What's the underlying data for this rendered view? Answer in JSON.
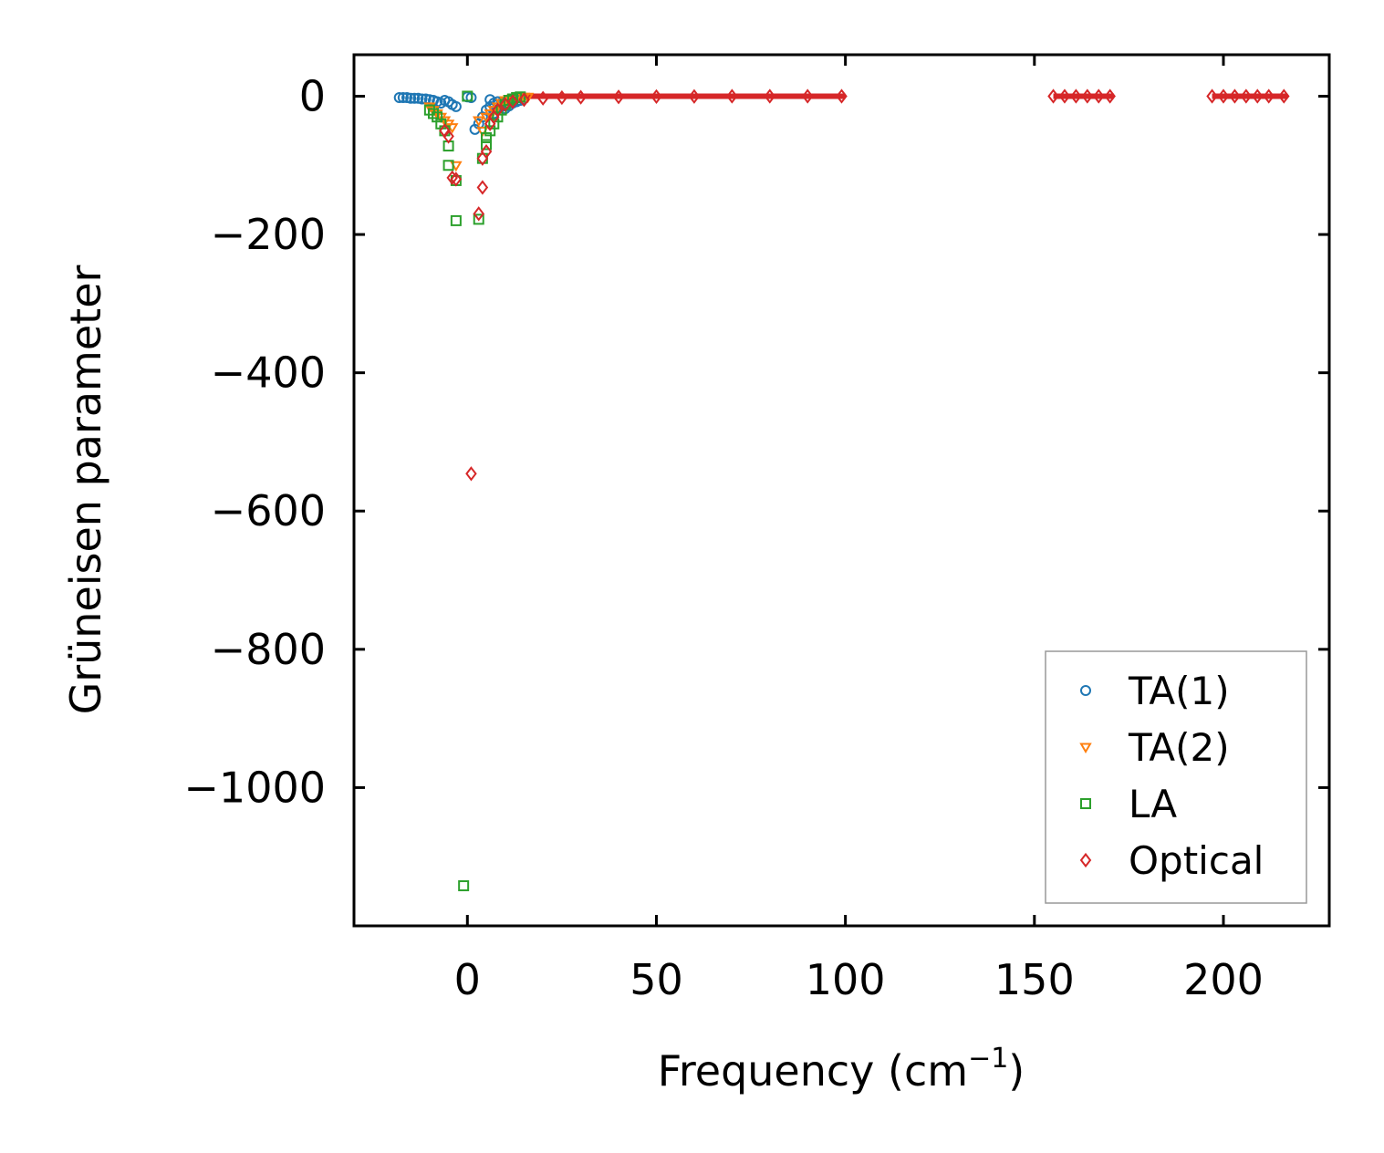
{
  "chart_data": {
    "type": "scatter",
    "xlabel": "Frequency (cm",
    "xlabel_sup": "−1",
    "xlabel_close": ")",
    "ylabel": "Grüneisen parameter",
    "xlim": [
      -30,
      228
    ],
    "ylim": [
      -1200,
      60
    ],
    "xticks": [
      0,
      50,
      100,
      150,
      200
    ],
    "xtick_labels": [
      "0",
      "50",
      "100",
      "150",
      "200"
    ],
    "yticks": [
      0,
      -200,
      -400,
      -600,
      -800,
      -1000
    ],
    "ytick_labels": [
      "0",
      "−200",
      "−400",
      "−600",
      "−800",
      "−1000"
    ],
    "grid": false,
    "legend_position": "bottom-right",
    "series": [
      {
        "name": "TA(1)",
        "marker": "circle",
        "color": "#1f77b4",
        "points": [
          [
            -18,
            -2
          ],
          [
            -17,
            -2
          ],
          [
            -16,
            -2
          ],
          [
            -15,
            -3
          ],
          [
            -14,
            -3
          ],
          [
            -13,
            -3
          ],
          [
            -12,
            -4
          ],
          [
            -11,
            -4
          ],
          [
            -10,
            -5
          ],
          [
            -9,
            -6
          ],
          [
            -8,
            -8
          ],
          [
            -7,
            -10
          ],
          [
            -6,
            -6
          ],
          [
            -5,
            -8
          ],
          [
            -4,
            -12
          ],
          [
            -3,
            -15
          ],
          [
            0,
            -1
          ],
          [
            1,
            -2
          ],
          [
            2,
            -48
          ],
          [
            3,
            -40
          ],
          [
            4,
            -30
          ],
          [
            5,
            -20
          ],
          [
            6,
            -15
          ],
          [
            6,
            -5
          ],
          [
            7,
            -10
          ],
          [
            7,
            -25
          ],
          [
            8,
            -12
          ],
          [
            8,
            -8
          ],
          [
            9,
            -15
          ],
          [
            9,
            -10
          ],
          [
            10,
            -12
          ],
          [
            10,
            -18
          ],
          [
            11,
            -14
          ],
          [
            12,
            -10
          ],
          [
            13,
            -8
          ],
          [
            14,
            -6
          ]
        ]
      },
      {
        "name": "TA(2)",
        "marker": "triangle",
        "color": "#ff7f0e",
        "points": [
          [
            -10,
            -15
          ],
          [
            -9,
            -20
          ],
          [
            -8,
            -25
          ],
          [
            -7,
            -30
          ],
          [
            -6,
            -35
          ],
          [
            -5,
            -40
          ],
          [
            -4,
            -45
          ],
          [
            -3,
            -100
          ],
          [
            3,
            -35
          ],
          [
            4,
            -50
          ],
          [
            5,
            -30
          ],
          [
            6,
            -25
          ],
          [
            7,
            -20
          ],
          [
            8,
            -15
          ],
          [
            9,
            -10
          ],
          [
            10,
            -6
          ],
          [
            11,
            -4
          ],
          [
            12,
            -3
          ],
          [
            13,
            -2
          ],
          [
            14,
            -1
          ],
          [
            15,
            -1
          ],
          [
            16,
            -1
          ]
        ]
      },
      {
        "name": "LA",
        "marker": "square",
        "color": "#2ca02c",
        "points": [
          [
            -10,
            -20
          ],
          [
            -9,
            -25
          ],
          [
            -8,
            -30
          ],
          [
            -7,
            -40
          ],
          [
            -6,
            -50
          ],
          [
            -5,
            -72
          ],
          [
            -5,
            -100
          ],
          [
            -3,
            -122
          ],
          [
            -3,
            -180
          ],
          [
            -1,
            -1142
          ],
          [
            0,
            0
          ],
          [
            3,
            -178
          ],
          [
            4,
            -90
          ],
          [
            5,
            -70
          ],
          [
            5,
            -60
          ],
          [
            6,
            -50
          ],
          [
            7,
            -40
          ],
          [
            8,
            -30
          ],
          [
            9,
            -20
          ],
          [
            10,
            -12
          ],
          [
            11,
            -6
          ],
          [
            12,
            -4
          ],
          [
            13,
            -2
          ],
          [
            14,
            -1
          ]
        ]
      },
      {
        "name": "Optical",
        "marker": "diamond",
        "color": "#d62728",
        "points": [
          [
            -6,
            -50
          ],
          [
            -5,
            -58
          ],
          [
            -4,
            -118
          ],
          [
            -3,
            -120
          ],
          [
            1,
            -546
          ],
          [
            3,
            -170
          ],
          [
            4,
            -132
          ],
          [
            4,
            -90
          ],
          [
            5,
            -80
          ],
          [
            6,
            -40
          ],
          [
            7,
            -30
          ],
          [
            8,
            -20
          ],
          [
            10,
            -12
          ],
          [
            12,
            -8
          ],
          [
            15,
            -5
          ],
          [
            20,
            -3
          ],
          [
            25,
            -2
          ],
          [
            30,
            -1.5
          ],
          [
            40,
            -1
          ],
          [
            50,
            -0.5
          ],
          [
            60,
            -0.3
          ],
          [
            70,
            0
          ],
          [
            80,
            0
          ],
          [
            90,
            0
          ],
          [
            99,
            0
          ],
          [
            155,
            0
          ],
          [
            158,
            0
          ],
          [
            161,
            0
          ],
          [
            164,
            0
          ],
          [
            167,
            0
          ],
          [
            170,
            0
          ],
          [
            197,
            0
          ],
          [
            200,
            0
          ],
          [
            203,
            0
          ],
          [
            206,
            0
          ],
          [
            209,
            0
          ],
          [
            212,
            0
          ],
          [
            216,
            0
          ]
        ]
      }
    ]
  }
}
